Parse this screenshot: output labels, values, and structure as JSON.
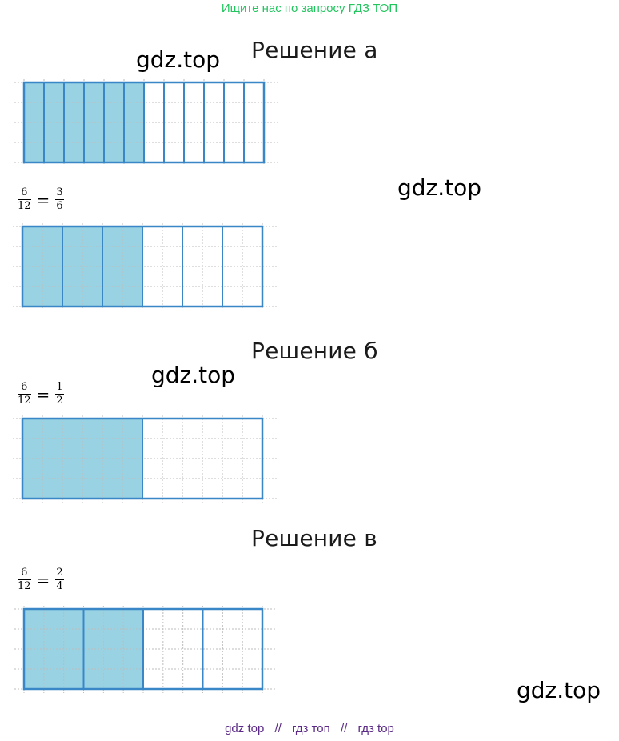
{
  "banner": "Ищите нас по запросу ГДЗ ТОП",
  "watermark": "gdz.top",
  "sections": [
    {
      "heading": "Решение а"
    },
    {
      "heading": "Решение б"
    },
    {
      "heading": "Решение в"
    }
  ],
  "equations": [
    {
      "left": {
        "num": "6",
        "den": "12"
      },
      "sign": "=",
      "right": {
        "num": "3",
        "den": "6"
      }
    },
    {
      "left": {
        "num": "6",
        "den": "12"
      },
      "sign": "=",
      "right": {
        "num": "1",
        "den": "2"
      }
    },
    {
      "left": {
        "num": "6",
        "den": "12"
      },
      "sign": "=",
      "right": {
        "num": "2",
        "den": "4"
      }
    }
  ],
  "diagrams": [
    {
      "parts": 12,
      "shaded": 6
    },
    {
      "parts": 6,
      "shaded": 3
    },
    {
      "parts": 2,
      "shaded": 1
    },
    {
      "parts": 4,
      "shaded": 2
    }
  ],
  "colors": {
    "fill": "#99d3e3",
    "stroke": "#3a87c8",
    "grid": "#bdbdbd",
    "banner": "#22c55e",
    "footer": "#5b2a86"
  },
  "footer": {
    "items": [
      "gdz top",
      "гдз топ",
      "гдз top"
    ],
    "separator": "//"
  }
}
